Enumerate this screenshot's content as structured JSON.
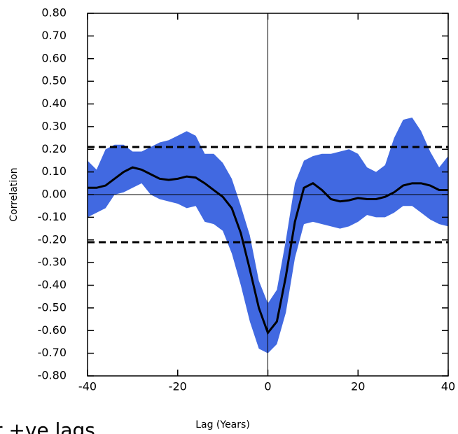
{
  "chart_data": {
    "type": "line",
    "x_label": "Lag (Years)",
    "y_label": "Correlation",
    "annotation": "r +ve lags",
    "x": [
      -40,
      -38,
      -36,
      -34,
      -32,
      -30,
      -28,
      -26,
      -24,
      -22,
      -20,
      -18,
      -16,
      -14,
      -12,
      -10,
      -8,
      -6,
      -4,
      -2,
      0,
      2,
      4,
      6,
      8,
      10,
      12,
      14,
      16,
      18,
      20,
      22,
      24,
      26,
      28,
      30,
      32,
      34,
      36,
      38,
      40
    ],
    "values": [
      0.03,
      0.03,
      0.04,
      0.07,
      0.1,
      0.12,
      0.11,
      0.09,
      0.07,
      0.065,
      0.07,
      0.08,
      0.075,
      0.05,
      0.02,
      -0.01,
      -0.06,
      -0.17,
      -0.33,
      -0.5,
      -0.61,
      -0.56,
      -0.36,
      -0.12,
      0.03,
      0.05,
      0.02,
      -0.02,
      -0.03,
      -0.025,
      -0.015,
      -0.02,
      -0.02,
      -0.01,
      0.01,
      0.04,
      0.05,
      0.05,
      0.04,
      0.02,
      0.02
    ],
    "color": "#000000",
    "band": {
      "color": "#4169e1",
      "upper": [
        0.15,
        0.11,
        0.2,
        0.22,
        0.22,
        0.19,
        0.19,
        0.21,
        0.23,
        0.24,
        0.26,
        0.28,
        0.26,
        0.18,
        0.18,
        0.14,
        0.07,
        -0.05,
        -0.18,
        -0.38,
        -0.48,
        -0.42,
        -0.2,
        0.05,
        0.15,
        0.17,
        0.18,
        0.18,
        0.19,
        0.2,
        0.18,
        0.12,
        0.1,
        0.13,
        0.25,
        0.33,
        0.34,
        0.28,
        0.19,
        0.12,
        0.17
      ],
      "lower": [
        -0.1,
        -0.08,
        -0.06,
        0.0,
        0.01,
        0.03,
        0.05,
        0.0,
        -0.02,
        -0.03,
        -0.04,
        -0.06,
        -0.05,
        -0.12,
        -0.13,
        -0.16,
        -0.26,
        -0.4,
        -0.56,
        -0.68,
        -0.7,
        -0.66,
        -0.52,
        -0.28,
        -0.13,
        -0.12,
        -0.13,
        -0.14,
        -0.15,
        -0.14,
        -0.12,
        -0.09,
        -0.1,
        -0.1,
        -0.08,
        -0.05,
        -0.05,
        -0.08,
        -0.11,
        -0.13,
        -0.14
      ]
    },
    "hlines": [
      0.21,
      -0.21
    ],
    "xlim": [
      -40,
      40
    ],
    "xticks": [
      -40,
      -20,
      0,
      20,
      40
    ],
    "ylim": [
      -0.8,
      0.8
    ],
    "yticks": [
      {
        "value": 0.8,
        "label": "0.80"
      },
      {
        "value": 0.7,
        "label": "0.70"
      },
      {
        "value": 0.6,
        "label": "0.60"
      },
      {
        "value": 0.5,
        "label": "0.50"
      },
      {
        "value": 0.4,
        "label": "0.40"
      },
      {
        "value": 0.3,
        "label": "0.30"
      },
      {
        "value": 0.2,
        "label": "0.20"
      },
      {
        "value": 0.1,
        "label": "0.10"
      },
      {
        "value": 0,
        "label": "0.00"
      },
      {
        "value": -0.1,
        "label": "-0.10"
      },
      {
        "value": -0.2,
        "label": "-0.20"
      },
      {
        "value": -0.3,
        "label": "-0.30"
      },
      {
        "value": -0.4,
        "label": "-0.40"
      },
      {
        "value": -0.5,
        "label": "-0.50"
      },
      {
        "value": -0.6,
        "label": "-0.60"
      },
      {
        "value": -0.7,
        "label": "-0.70"
      },
      {
        "value": -0.8,
        "label": "-0.80"
      }
    ]
  }
}
